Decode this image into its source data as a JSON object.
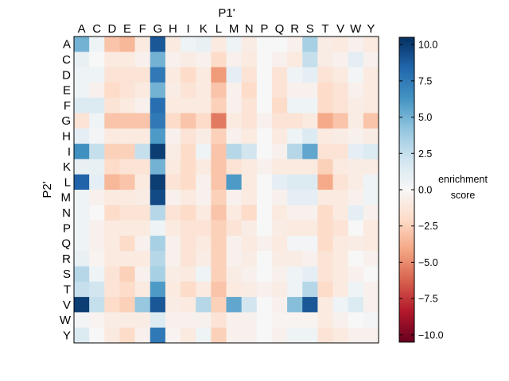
{
  "chart_data": {
    "type": "heatmap",
    "title": "",
    "xlabel": "P1'",
    "ylabel": "P2'",
    "x_categories": [
      "A",
      "C",
      "D",
      "E",
      "F",
      "G",
      "H",
      "I",
      "K",
      "L",
      "M",
      "N",
      "P",
      "Q",
      "R",
      "S",
      "T",
      "V",
      "W",
      "Y"
    ],
    "y_categories": [
      "A",
      "C",
      "D",
      "E",
      "F",
      "G",
      "H",
      "I",
      "K",
      "L",
      "M",
      "N",
      "P",
      "Q",
      "R",
      "S",
      "T",
      "V",
      "W",
      "Y"
    ],
    "colorbar": {
      "label_lines": [
        "enrichment",
        "score"
      ],
      "range": [
        -10.5,
        10.5
      ],
      "ticks": [
        10.0,
        7.5,
        5.0,
        2.5,
        0.0,
        -2.5,
        -5.0,
        -7.5,
        -10.0
      ],
      "tick_labels": [
        "10.0",
        "7.5",
        "5.0",
        "2.5",
        "0.0",
        "−2.5",
        "−5.0",
        "−7.5",
        "−10.0"
      ],
      "colormap": "RdBu",
      "colormap_stops": [
        "#67001f",
        "#b2182b",
        "#d6604d",
        "#f4a582",
        "#fddbc7",
        "#f7f7f7",
        "#d1e5f0",
        "#92c5de",
        "#4393c3",
        "#2166ac",
        "#053061"
      ]
    },
    "grid": false,
    "values": [
      [
        5.0,
        0.5,
        -3.0,
        -3.5,
        -1.0,
        9.0,
        -1.0,
        0.5,
        0.8,
        -1.0,
        0.5,
        -0.8,
        0.0,
        0.0,
        -0.5,
        3.5,
        -0.8,
        -1.0,
        -0.5,
        -1.0
      ],
      [
        0.8,
        0.0,
        -1.0,
        -1.0,
        -0.5,
        5.0,
        -0.5,
        -0.8,
        -0.5,
        -2.0,
        -0.5,
        -1.0,
        0.0,
        -0.5,
        -1.0,
        2.5,
        -0.8,
        -0.5,
        1.0,
        -0.5
      ],
      [
        0.5,
        0.5,
        -1.5,
        -1.5,
        -1.5,
        7.5,
        -1.0,
        -2.0,
        -1.0,
        -4.5,
        1.0,
        -1.5,
        0.0,
        -1.5,
        0.5,
        1.0,
        -1.5,
        -1.0,
        0.3,
        -1.0
      ],
      [
        0.5,
        -0.5,
        -2.0,
        -1.5,
        -1.0,
        5.0,
        -0.8,
        -1.5,
        -1.0,
        -3.0,
        -0.5,
        -2.0,
        0.0,
        -1.5,
        -0.5,
        -0.5,
        -2.0,
        -1.5,
        -0.5,
        -1.0
      ],
      [
        1.5,
        1.5,
        -1.5,
        -1.0,
        -0.5,
        8.0,
        -1.0,
        -1.0,
        -1.0,
        -2.5,
        -0.5,
        -1.5,
        0.0,
        -2.0,
        0.5,
        0.5,
        -2.0,
        -1.5,
        -0.8,
        -1.0
      ],
      [
        -1.5,
        0.5,
        -3.0,
        -3.0,
        -3.0,
        7.5,
        -2.0,
        -3.0,
        -2.0,
        -5.5,
        -1.0,
        -1.5,
        -0.5,
        -1.5,
        -1.5,
        -1.0,
        -4.0,
        -3.0,
        -0.8,
        -3.0
      ],
      [
        1.0,
        0.3,
        -1.0,
        -1.0,
        -1.0,
        6.0,
        -0.5,
        -1.5,
        -0.8,
        -2.5,
        -0.5,
        -1.0,
        0.0,
        -1.0,
        0.5,
        1.5,
        -1.0,
        -0.8,
        -0.5,
        -0.8
      ],
      [
        6.5,
        2.5,
        -2.5,
        -2.5,
        2.5,
        10.0,
        -0.8,
        -2.0,
        0.5,
        -3.0,
        3.0,
        2.0,
        0.0,
        -0.5,
        3.0,
        5.5,
        -1.5,
        -1.5,
        1.0,
        1.5
      ],
      [
        0.8,
        0.8,
        -2.0,
        -1.5,
        -1.5,
        5.0,
        -1.0,
        -2.0,
        -1.0,
        -3.0,
        -1.5,
        -1.0,
        -0.5,
        -1.0,
        -1.0,
        -1.0,
        -2.5,
        -1.0,
        -0.8,
        -0.8
      ],
      [
        8.5,
        1.0,
        -3.5,
        -3.0,
        -1.0,
        10.0,
        -1.5,
        -2.0,
        -0.5,
        -3.0,
        6.0,
        -1.0,
        0.0,
        1.0,
        1.5,
        1.5,
        -4.0,
        -1.5,
        -0.8,
        0.5
      ],
      [
        0.5,
        -0.5,
        -1.0,
        -1.0,
        -0.8,
        9.5,
        -0.5,
        -1.0,
        -0.5,
        -2.5,
        -0.5,
        -1.0,
        0.0,
        -0.5,
        1.0,
        1.0,
        -1.0,
        -1.0,
        -0.5,
        0.5
      ],
      [
        0.5,
        0.0,
        -2.0,
        -1.5,
        -1.5,
        3.0,
        -1.5,
        -2.0,
        -1.0,
        -3.0,
        -1.0,
        -2.0,
        0.0,
        -1.0,
        -0.5,
        -0.5,
        -2.0,
        -1.0,
        1.0,
        -0.5
      ],
      [
        0.5,
        -0.5,
        -1.0,
        -1.0,
        -1.0,
        0.5,
        -1.0,
        -1.5,
        -1.5,
        -2.5,
        -1.5,
        -0.8,
        0.0,
        -0.8,
        -1.0,
        -1.0,
        -2.0,
        -1.5,
        0.0,
        -1.0
      ],
      [
        0.5,
        -0.5,
        -1.0,
        -2.0,
        -0.5,
        3.5,
        -0.5,
        -1.5,
        -1.0,
        -2.5,
        -0.5,
        -1.0,
        -0.5,
        -1.0,
        0.3,
        0.3,
        -2.0,
        -1.0,
        -0.8,
        -1.0
      ],
      [
        0.8,
        -0.3,
        -1.0,
        -1.0,
        -1.0,
        3.0,
        -0.5,
        -1.5,
        -0.8,
        -2.5,
        -0.5,
        -0.8,
        0.0,
        -0.8,
        -0.8,
        -0.5,
        -1.5,
        -1.0,
        0.0,
        -0.5
      ],
      [
        3.0,
        0.5,
        -1.5,
        -2.5,
        -0.5,
        3.5,
        -0.8,
        -1.0,
        0.5,
        -2.5,
        -0.8,
        -0.5,
        0.0,
        -0.5,
        0.5,
        1.0,
        -1.5,
        -1.0,
        -0.5,
        0.0
      ],
      [
        2.5,
        2.0,
        -1.5,
        -2.0,
        -1.0,
        6.0,
        -1.0,
        -2.0,
        -1.0,
        -3.0,
        -1.0,
        -0.8,
        -0.5,
        -0.8,
        0.5,
        3.0,
        -2.0,
        -1.0,
        0.5,
        -0.5
      ],
      [
        10.0,
        2.5,
        -2.0,
        -2.5,
        4.0,
        9.0,
        -0.8,
        -1.0,
        3.0,
        -2.5,
        5.5,
        2.0,
        0.0,
        -0.5,
        4.5,
        9.0,
        -1.0,
        0.5,
        1.5,
        -0.5
      ],
      [
        0.3,
        -0.3,
        -0.8,
        -0.8,
        -0.8,
        1.5,
        -0.5,
        -0.5,
        -0.5,
        -1.5,
        -0.5,
        -0.5,
        0.0,
        -0.3,
        -0.3,
        -0.3,
        -1.0,
        -0.5,
        0.0,
        0.3
      ],
      [
        1.5,
        0.0,
        -1.0,
        -2.0,
        -0.5,
        7.5,
        -0.3,
        -1.0,
        0.5,
        -2.5,
        -0.5,
        -0.5,
        0.0,
        -0.5,
        0.5,
        0.5,
        -1.5,
        -1.0,
        -0.5,
        -0.5
      ]
    ]
  }
}
